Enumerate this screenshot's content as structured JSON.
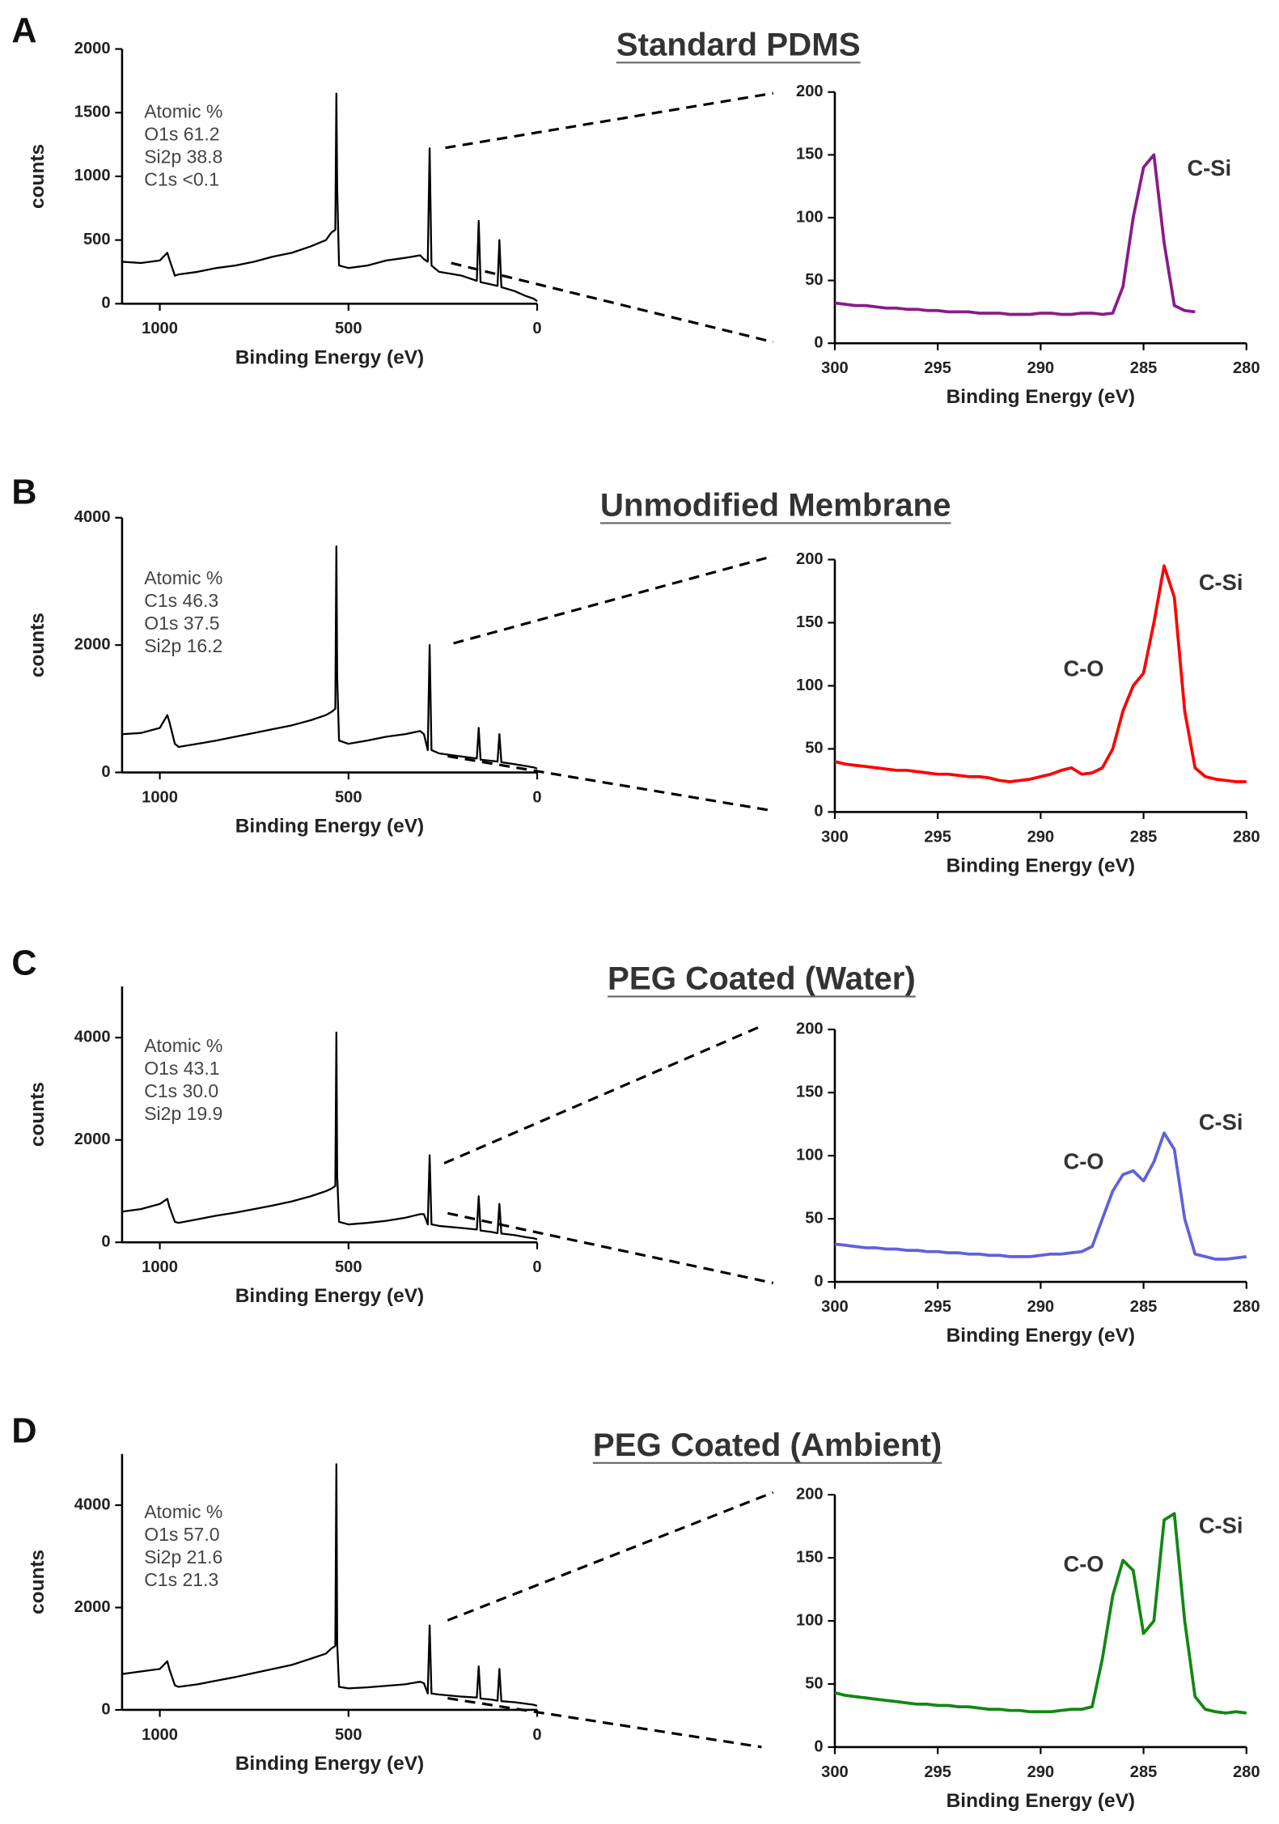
{
  "chart_data": [
    {
      "type": "line",
      "panel": "A",
      "title": "Standard PDMS",
      "xlabel": "Binding Energy (eV)",
      "ylabel": "counts",
      "color": "#000000",
      "annotations": [
        "Atomic %",
        "O1s 61.2",
        "Si2p 38.8",
        "C1s <0.1"
      ],
      "xlim": [
        1100,
        0
      ],
      "xticks": [
        1000,
        500,
        0
      ],
      "ylim": [
        0,
        2000
      ],
      "yticks": [
        0,
        500,
        1000,
        1500,
        2000
      ],
      "x": [
        1100,
        1050,
        1000,
        980,
        975,
        960,
        950,
        900,
        850,
        800,
        750,
        700,
        650,
        600,
        560,
        545,
        535,
        532,
        530,
        525,
        500,
        450,
        400,
        350,
        310,
        300,
        290,
        285,
        280,
        260,
        200,
        160,
        155,
        150,
        120,
        105,
        100,
        95,
        60,
        30,
        10,
        0
      ],
      "values": [
        330,
        320,
        340,
        400,
        350,
        220,
        230,
        250,
        280,
        300,
        330,
        370,
        400,
        450,
        500,
        560,
        580,
        1650,
        900,
        300,
        280,
        300,
        340,
        360,
        380,
        350,
        330,
        1220,
        300,
        250,
        220,
        180,
        650,
        170,
        150,
        140,
        500,
        130,
        100,
        60,
        40,
        20
      ]
    },
    {
      "type": "line",
      "xlabel": "Binding Energy (eV)",
      "color": "#8b1a8b",
      "annotations": [
        "C-Si"
      ],
      "xlim": [
        300,
        280
      ],
      "xticks": [
        300,
        295,
        290,
        285,
        280
      ],
      "ylim": [
        0,
        200
      ],
      "yticks": [
        0,
        50,
        100,
        150,
        200
      ],
      "x": [
        300,
        299.5,
        299,
        298.5,
        298,
        297.5,
        297,
        296.5,
        296,
        295.5,
        295,
        294.5,
        294,
        293.5,
        293,
        292.5,
        292,
        291.5,
        291,
        290.5,
        290,
        289.5,
        289,
        288.5,
        288,
        287.5,
        287,
        286.5,
        286,
        285.5,
        285,
        284.5,
        284,
        283.5,
        283,
        282.5
      ],
      "values": [
        32,
        31,
        30,
        30,
        29,
        28,
        28,
        27,
        27,
        26,
        26,
        25,
        25,
        25,
        24,
        24,
        24,
        23,
        23,
        23,
        24,
        24,
        23,
        23,
        24,
        24,
        23,
        24,
        45,
        100,
        140,
        150,
        80,
        30,
        26,
        25
      ]
    },
    {
      "type": "line",
      "panel": "B",
      "title": "Unmodified Membrane",
      "xlabel": "Binding Energy (eV)",
      "ylabel": "counts",
      "color": "#000000",
      "annotations": [
        "Atomic %",
        "C1s 46.3",
        "O1s 37.5",
        "Si2p 16.2"
      ],
      "xlim": [
        1100,
        0
      ],
      "xticks": [
        1000,
        500,
        0
      ],
      "ylim": [
        0,
        4000
      ],
      "yticks": [
        0,
        2000,
        4000
      ],
      "x": [
        1100,
        1050,
        1000,
        980,
        975,
        960,
        950,
        900,
        850,
        800,
        750,
        700,
        650,
        600,
        560,
        545,
        535,
        532,
        530,
        525,
        500,
        450,
        400,
        350,
        310,
        300,
        290,
        285,
        280,
        260,
        200,
        160,
        155,
        150,
        120,
        105,
        100,
        95,
        60,
        30,
        10,
        0
      ],
      "values": [
        600,
        620,
        700,
        900,
        800,
        450,
        400,
        450,
        500,
        560,
        620,
        680,
        740,
        820,
        900,
        950,
        1000,
        3550,
        1500,
        500,
        450,
        500,
        560,
        600,
        650,
        600,
        350,
        2000,
        350,
        300,
        250,
        220,
        700,
        200,
        180,
        170,
        600,
        160,
        130,
        100,
        80,
        60
      ]
    },
    {
      "type": "line",
      "xlabel": "Binding Energy (eV)",
      "color": "#ff0000",
      "annotations": [
        "C-Si",
        "C-O"
      ],
      "xlim": [
        300,
        280
      ],
      "xticks": [
        300,
        295,
        290,
        285,
        280
      ],
      "ylim": [
        0,
        200
      ],
      "yticks": [
        0,
        50,
        100,
        150,
        200
      ],
      "x": [
        300,
        299.5,
        299,
        298.5,
        298,
        297.5,
        297,
        296.5,
        296,
        295.5,
        295,
        294.5,
        294,
        293.5,
        293,
        292.5,
        292,
        291.5,
        291,
        290.5,
        290,
        289.5,
        289,
        288.5,
        288,
        287.5,
        287,
        286.5,
        286,
        285.5,
        285,
        284.5,
        284,
        283.5,
        283,
        282.5,
        282,
        281.5,
        281,
        280.5,
        280
      ],
      "values": [
        40,
        38,
        37,
        36,
        35,
        34,
        33,
        33,
        32,
        31,
        30,
        30,
        29,
        28,
        28,
        27,
        25,
        24,
        25,
        26,
        28,
        30,
        33,
        35,
        30,
        31,
        35,
        50,
        80,
        100,
        110,
        150,
        195,
        170,
        80,
        35,
        28,
        26,
        25,
        24,
        24
      ]
    },
    {
      "type": "line",
      "panel": "C",
      "title": "PEG Coated (Water)",
      "xlabel": "Binding Energy (eV)",
      "ylabel": "counts",
      "color": "#000000",
      "annotations": [
        "Atomic %",
        "O1s 43.1",
        "C1s 30.0",
        "Si2p 19.9"
      ],
      "xlim": [
        1100,
        0
      ],
      "xticks": [
        1000,
        500,
        0
      ],
      "ylim": [
        0,
        5000
      ],
      "yticks": [
        0,
        2000,
        4000
      ],
      "x": [
        1100,
        1050,
        1000,
        980,
        975,
        960,
        950,
        900,
        850,
        800,
        750,
        700,
        650,
        600,
        560,
        545,
        535,
        532,
        530,
        525,
        500,
        450,
        400,
        350,
        310,
        300,
        290,
        285,
        280,
        260,
        200,
        160,
        155,
        150,
        120,
        105,
        100,
        95,
        60,
        30,
        10,
        0
      ],
      "values": [
        600,
        650,
        750,
        850,
        700,
        400,
        380,
        450,
        520,
        580,
        650,
        720,
        800,
        900,
        1000,
        1050,
        1100,
        4100,
        1300,
        400,
        350,
        380,
        420,
        480,
        550,
        550,
        350,
        1700,
        350,
        320,
        280,
        250,
        900,
        230,
        200,
        180,
        750,
        170,
        140,
        100,
        80,
        60
      ]
    },
    {
      "type": "line",
      "xlabel": "Binding Energy (eV)",
      "color": "#6060dd",
      "annotations": [
        "C-Si",
        "C-O"
      ],
      "xlim": [
        300,
        280
      ],
      "xticks": [
        300,
        295,
        290,
        285,
        280
      ],
      "ylim": [
        0,
        200
      ],
      "yticks": [
        0,
        50,
        100,
        150,
        200
      ],
      "x": [
        300,
        299.5,
        299,
        298.5,
        298,
        297.5,
        297,
        296.5,
        296,
        295.5,
        295,
        294.5,
        294,
        293.5,
        293,
        292.5,
        292,
        291.5,
        291,
        290.5,
        290,
        289.5,
        289,
        288.5,
        288,
        287.5,
        287,
        286.5,
        286,
        285.5,
        285,
        284.5,
        284,
        283.5,
        283,
        282.5,
        282,
        281.5,
        281,
        280.5,
        280
      ],
      "values": [
        30,
        29,
        28,
        27,
        27,
        26,
        26,
        25,
        25,
        24,
        24,
        23,
        23,
        22,
        22,
        21,
        21,
        20,
        20,
        20,
        21,
        22,
        22,
        23,
        24,
        28,
        50,
        72,
        85,
        88,
        80,
        95,
        118,
        105,
        50,
        22,
        20,
        18,
        18,
        19,
        20
      ]
    },
    {
      "type": "line",
      "panel": "D",
      "title": "PEG Coated (Ambient)",
      "xlabel": "Binding Energy (eV)",
      "ylabel": "counts",
      "color": "#000000",
      "annotations": [
        "Atomic %",
        "O1s 57.0",
        "Si2p 21.6",
        "C1s 21.3"
      ],
      "xlim": [
        1100,
        0
      ],
      "xticks": [
        1000,
        500,
        0
      ],
      "ylim": [
        0,
        5000
      ],
      "yticks": [
        0,
        2000,
        4000
      ],
      "x": [
        1100,
        1050,
        1000,
        980,
        975,
        960,
        950,
        900,
        850,
        800,
        750,
        700,
        650,
        600,
        560,
        545,
        535,
        532,
        530,
        525,
        500,
        450,
        400,
        350,
        310,
        300,
        290,
        285,
        280,
        260,
        200,
        160,
        155,
        150,
        120,
        105,
        100,
        95,
        60,
        30,
        10,
        0
      ],
      "values": [
        700,
        750,
        800,
        950,
        800,
        480,
        450,
        500,
        570,
        640,
        720,
        800,
        880,
        1000,
        1100,
        1200,
        1250,
        4800,
        1300,
        450,
        420,
        440,
        470,
        500,
        550,
        520,
        320,
        1650,
        320,
        300,
        260,
        240,
        850,
        220,
        200,
        180,
        800,
        170,
        150,
        120,
        100,
        80
      ]
    },
    {
      "type": "line",
      "xlabel": "Binding Energy (eV)",
      "color": "#118811",
      "annotations": [
        "C-Si",
        "C-O"
      ],
      "xlim": [
        300,
        280
      ],
      "xticks": [
        300,
        295,
        290,
        285,
        280
      ],
      "ylim": [
        0,
        200
      ],
      "yticks": [
        0,
        50,
        100,
        150,
        200
      ],
      "x": [
        300,
        299.5,
        299,
        298.5,
        298,
        297.5,
        297,
        296.5,
        296,
        295.5,
        295,
        294.5,
        294,
        293.5,
        293,
        292.5,
        292,
        291.5,
        291,
        290.5,
        290,
        289.5,
        289,
        288.5,
        288,
        287.5,
        287,
        286.5,
        286,
        285.5,
        285,
        284.5,
        284,
        283.5,
        283,
        282.5,
        282,
        281.5,
        281,
        280.5,
        280
      ],
      "values": [
        43,
        41,
        40,
        39,
        38,
        37,
        36,
        35,
        34,
        34,
        33,
        33,
        32,
        32,
        31,
        30,
        30,
        29,
        29,
        28,
        28,
        28,
        29,
        30,
        30,
        32,
        70,
        120,
        148,
        140,
        90,
        100,
        180,
        185,
        100,
        40,
        30,
        28,
        27,
        28,
        27
      ]
    }
  ]
}
